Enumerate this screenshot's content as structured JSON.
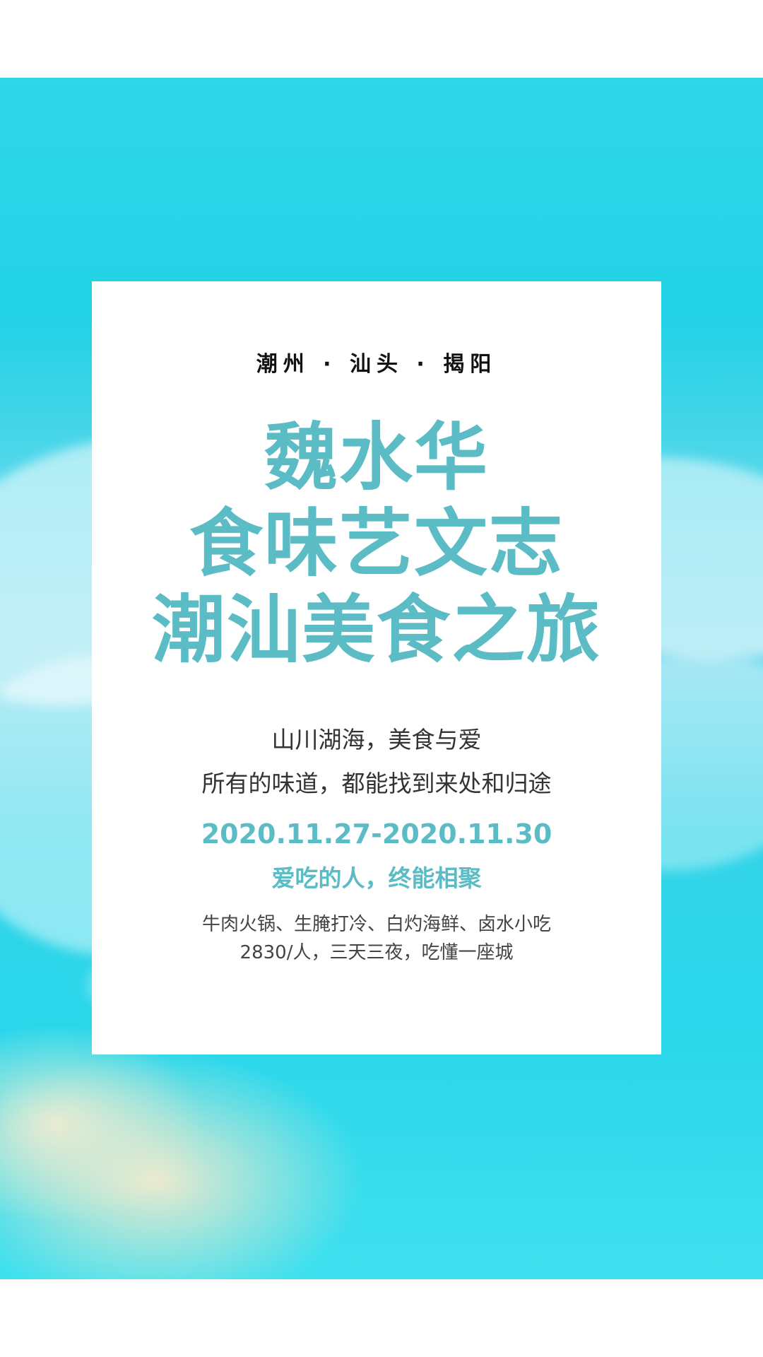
{
  "poster": {
    "locations": "潮州 · 汕头 · 揭阳",
    "title_lines": [
      "魏水华",
      "食味艺文志",
      "潮汕美食之旅"
    ],
    "tagline_lines": [
      "山川湖海，美食与爱",
      "所有的味道，都能找到来处和归途"
    ],
    "dates": "2020.11.27-2020.11.30",
    "subhead": "爱吃的人，终能相聚",
    "detail_lines": [
      "牛肉火锅、生腌打冷、白灼海鲜、卤水小吃",
      "2830/人，三天三夜，吃懂一座城"
    ]
  },
  "colors": {
    "accent": "#5bbcc5",
    "ocean": "#2fd7e8",
    "card": "#ffffff"
  }
}
